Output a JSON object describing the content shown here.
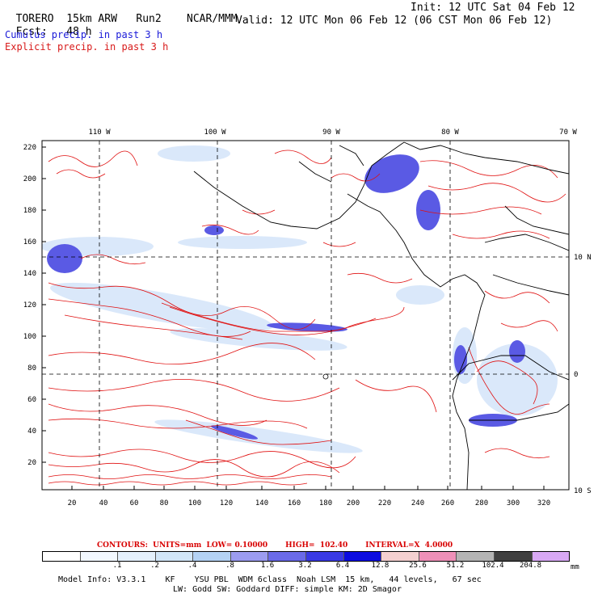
{
  "header": {
    "model": "TORERO",
    "res": "15km ARW",
    "run": "Run2",
    "org": "NCAR/MMM",
    "init": "Init: 12 UTC Sat 04 Feb 12",
    "fcst_label": "Fcst:",
    "fcst_val": "48 h",
    "valid": "Valid: 12 UTC Mon 06 Feb 12 (06 CST Mon 06 Feb 12)",
    "field1": "Cumulus precip. in past 3 h",
    "field2": "Explicit precip. in past 3 h"
  },
  "axes": {
    "lon_labels": [
      "110 W",
      "100 W",
      "90 W",
      "80 W",
      "70 W"
    ],
    "lat_labels": [
      "10 N",
      "0",
      "10 S"
    ],
    "x_ticks": [
      "20",
      "40",
      "60",
      "80",
      "100",
      "120",
      "140",
      "160",
      "180",
      "200",
      "220",
      "240",
      "260",
      "280",
      "300",
      "320"
    ],
    "y_ticks": [
      "220",
      "200",
      "180",
      "160",
      "140",
      "120",
      "100",
      "80",
      "60",
      "40",
      "20"
    ]
  },
  "contours": {
    "line": "CONTOURS:  UNITS=mm  LOW= 0.10000       HIGH=  102.40       INTERVAL=X  4.0000"
  },
  "legend": {
    "colors": [
      "#ffffff",
      "#f2f8ff",
      "#e4f0fc",
      "#d2e6f8",
      "#b4d2f4",
      "#9c9cf0",
      "#6a6ae8",
      "#3a3ae4",
      "#0c0ce0",
      "#f4d0d0",
      "#ee90b8",
      "#b4b4b4",
      "#404040",
      "#d8a8f4"
    ],
    "labels": [
      ".1",
      ".2",
      ".4",
      ".8",
      "1.6",
      "3.2",
      "6.4",
      "12.8",
      "25.6",
      "51.2",
      "102.4",
      "204.8"
    ],
    "unit": "mm"
  },
  "footer": {
    "line1": "Model Info: V3.3.1    KF    YSU PBL  WDM 6class  Noah LSM  15 km,   44 levels,   67 sec",
    "line2": "LW: Godd SW: Goddard DIFF: simple KM: 2D Smagor"
  },
  "colors": {
    "contour": "#e01010",
    "coast": "#000000",
    "precip_blue": "#4040e0"
  }
}
